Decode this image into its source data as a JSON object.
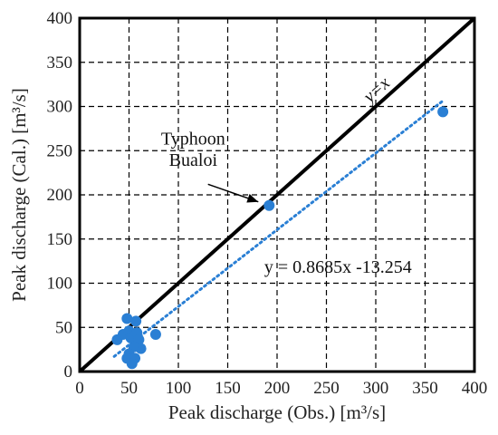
{
  "chart_data": {
    "type": "scatter",
    "title": "",
    "xlabel": "Peak discharge (Obs.) [m³/s]",
    "ylabel": "Peak discharge (Cal.) [m³/s]",
    "xlim": [
      0,
      400
    ],
    "ylim": [
      0,
      400
    ],
    "xticks": [
      "0",
      "50",
      "100",
      "150",
      "200",
      "250",
      "300",
      "350",
      "400"
    ],
    "yticks": [
      "0",
      "50",
      "100",
      "150",
      "200",
      "250",
      "300",
      "350",
      "400"
    ],
    "grid": true,
    "grid_style": "dashed",
    "series": [
      {
        "color": "#2a7fd4",
        "points": [
          {
            "x": 38,
            "y": 36
          },
          {
            "x": 44,
            "y": 42
          },
          {
            "x": 48,
            "y": 60
          },
          {
            "x": 50,
            "y": 46
          },
          {
            "x": 52,
            "y": 38
          },
          {
            "x": 57,
            "y": 57
          },
          {
            "x": 58,
            "y": 44
          },
          {
            "x": 60,
            "y": 36
          },
          {
            "x": 62,
            "y": 26
          },
          {
            "x": 55,
            "y": 28
          },
          {
            "x": 50,
            "y": 20
          },
          {
            "x": 48,
            "y": 15
          },
          {
            "x": 56,
            "y": 15
          },
          {
            "x": 53,
            "y": 9
          },
          {
            "x": 77,
            "y": 42
          },
          {
            "x": 192,
            "y": 188
          },
          {
            "x": 368,
            "y": 294
          }
        ]
      }
    ],
    "reference_line": {
      "label": "y=x",
      "color": "#000000"
    },
    "fit_line": {
      "equation": "y = 0.8685x -13.254",
      "slope": 0.8685,
      "intercept": -13.254,
      "x_range": [
        35,
        368
      ],
      "color": "#2a7fd4",
      "style": "dotted"
    },
    "annotation": {
      "line1": "Typhoon",
      "line2": "Bualoi",
      "target": {
        "x": 192,
        "y": 188
      }
    }
  }
}
